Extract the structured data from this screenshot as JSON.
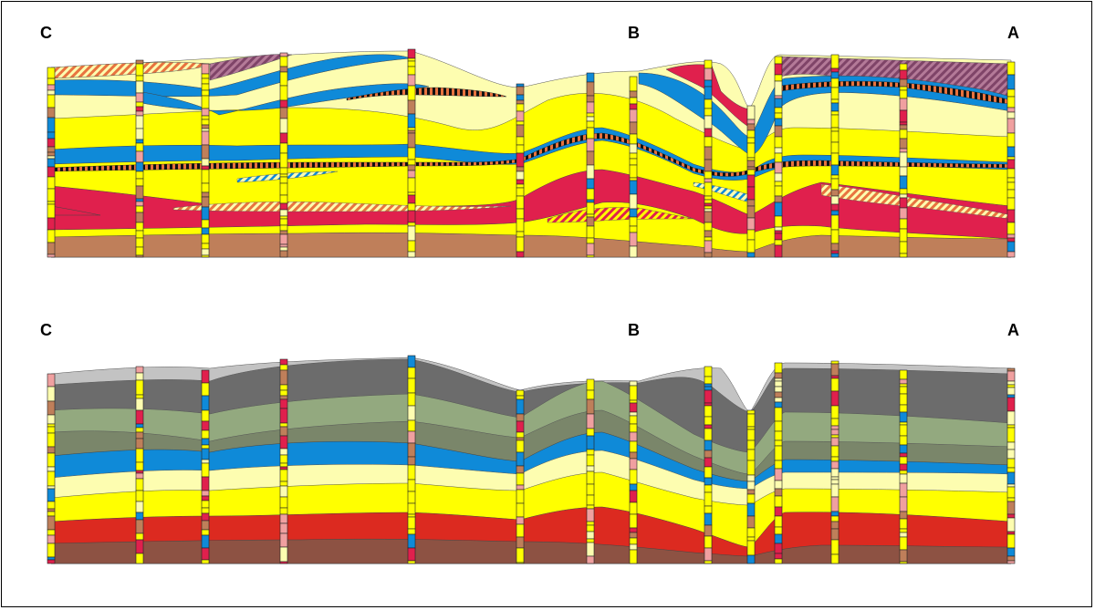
{
  "sections": {
    "top": {
      "labels": {
        "left": "C",
        "middle": "B",
        "right": "A"
      }
    },
    "bottom": {
      "labels": {
        "left": "C",
        "middle": "B",
        "right": "A"
      }
    }
  },
  "colors": {
    "pale_yellow": "#fdfdb0",
    "yellow": "#ffff00",
    "blue": "#0f8ad8",
    "red": "#e0204d",
    "brown": "#bf7f5a",
    "mauve": "#a05f7f",
    "orange_hatch": "#e8733f",
    "dark_gray": "#6c6c6c",
    "light_gray": "#c3c3c3",
    "sage": "#93a97f",
    "olive_gray": "#7a866a",
    "deep_red": "#dc2a20",
    "dark_brown": "#8d5243"
  }
}
